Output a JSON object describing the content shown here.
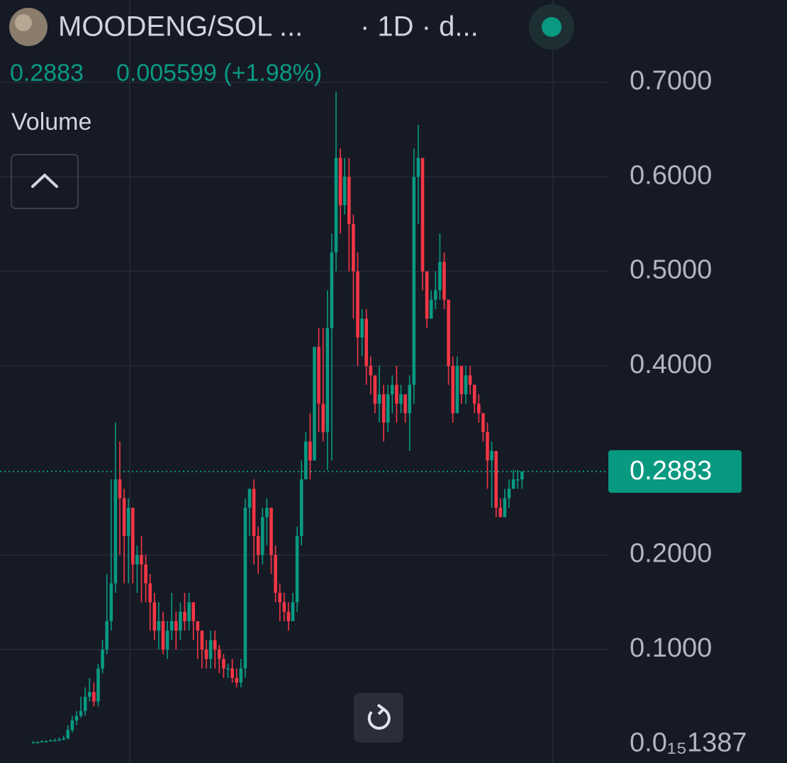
{
  "chart_data": {
    "type": "candlestick",
    "title": "MOODENG/SOL ...",
    "interval": "· 1D · d...",
    "last_price": 0.2883,
    "change_text": "0.005599 (+1.98%)",
    "volume_label": "Volume",
    "up_color": "#089981",
    "down_color": "#f23645",
    "ylim": [
      -0.02,
      0.787
    ],
    "yticks": [
      {
        "value": 1.387e-16,
        "label": "0.0₁₅1387"
      },
      {
        "value": 0.1,
        "label": "0.1000"
      },
      {
        "value": 0.2,
        "label": "0.2000"
      },
      {
        "value": 0.4,
        "label": "0.4000"
      },
      {
        "value": 0.5,
        "label": "0.5000"
      },
      {
        "value": 0.6,
        "label": "0.6000"
      },
      {
        "value": 0.7,
        "label": "0.7000"
      }
    ],
    "grid": true,
    "open": [
      0.002,
      0.002,
      0.002,
      0.003,
      0.003,
      0.004,
      0.004,
      0.005,
      0.006,
      0.015,
      0.025,
      0.03,
      0.035,
      0.05,
      0.055,
      0.045,
      0.08,
      0.1,
      0.13,
      0.17,
      0.28,
      0.26,
      0.22,
      0.25,
      0.19,
      0.2,
      0.19,
      0.17,
      0.15,
      0.12,
      0.13,
      0.1,
      0.12,
      0.13,
      0.12,
      0.14,
      0.13,
      0.15,
      0.13,
      0.12,
      0.1,
      0.09,
      0.11,
      0.1,
      0.09,
      0.08,
      0.08,
      0.07,
      0.065,
      0.08,
      0.25,
      0.27,
      0.22,
      0.2,
      0.24,
      0.25,
      0.2,
      0.16,
      0.15,
      0.14,
      0.13,
      0.15,
      0.22,
      0.28,
      0.32,
      0.3,
      0.42,
      0.36,
      0.33,
      0.44,
      0.52,
      0.62,
      0.57,
      0.6,
      0.55,
      0.5,
      0.43,
      0.45,
      0.4,
      0.39,
      0.36,
      0.37,
      0.34,
      0.37,
      0.38,
      0.36,
      0.37,
      0.35,
      0.38,
      0.6,
      0.62,
      0.5,
      0.45,
      0.47,
      0.48,
      0.51,
      0.47,
      0.4,
      0.35,
      0.4,
      0.37,
      0.39,
      0.38,
      0.36,
      0.35,
      0.33,
      0.3,
      0.31,
      0.25,
      0.24,
      0.26,
      0.27,
      0.28,
      0.28
    ],
    "high": [
      0.003,
      0.003,
      0.004,
      0.004,
      0.005,
      0.006,
      0.007,
      0.009,
      0.02,
      0.03,
      0.035,
      0.05,
      0.06,
      0.07,
      0.065,
      0.085,
      0.11,
      0.18,
      0.28,
      0.34,
      0.32,
      0.27,
      0.26,
      0.25,
      0.21,
      0.22,
      0.2,
      0.18,
      0.16,
      0.15,
      0.14,
      0.13,
      0.16,
      0.14,
      0.15,
      0.16,
      0.16,
      0.15,
      0.13,
      0.12,
      0.11,
      0.12,
      0.12,
      0.105,
      0.095,
      0.085,
      0.09,
      0.08,
      0.09,
      0.26,
      0.27,
      0.28,
      0.23,
      0.25,
      0.26,
      0.25,
      0.21,
      0.17,
      0.16,
      0.15,
      0.16,
      0.23,
      0.3,
      0.33,
      0.35,
      0.42,
      0.44,
      0.44,
      0.48,
      0.54,
      0.69,
      0.63,
      0.62,
      0.62,
      0.56,
      0.52,
      0.46,
      0.46,
      0.41,
      0.39,
      0.4,
      0.38,
      0.38,
      0.39,
      0.4,
      0.38,
      0.37,
      0.39,
      0.63,
      0.655,
      0.62,
      0.5,
      0.48,
      0.5,
      0.54,
      0.52,
      0.47,
      0.41,
      0.41,
      0.4,
      0.4,
      0.4,
      0.38,
      0.37,
      0.35,
      0.34,
      0.32,
      0.31,
      0.26,
      0.27,
      0.28,
      0.29,
      0.29,
      0.2883
    ],
    "low": [
      0.001,
      0.001,
      0.002,
      0.002,
      0.003,
      0.003,
      0.003,
      0.004,
      0.005,
      0.012,
      0.02,
      0.028,
      0.03,
      0.045,
      0.04,
      0.04,
      0.075,
      0.095,
      0.12,
      0.16,
      0.2,
      0.17,
      0.17,
      0.17,
      0.16,
      0.15,
      0.15,
      0.12,
      0.11,
      0.1,
      0.095,
      0.09,
      0.11,
      0.1,
      0.11,
      0.12,
      0.12,
      0.11,
      0.09,
      0.08,
      0.08,
      0.08,
      0.08,
      0.075,
      0.07,
      0.07,
      0.065,
      0.06,
      0.06,
      0.07,
      0.22,
      0.19,
      0.18,
      0.19,
      0.21,
      0.18,
      0.15,
      0.13,
      0.13,
      0.12,
      0.13,
      0.14,
      0.21,
      0.28,
      0.28,
      0.3,
      0.33,
      0.32,
      0.29,
      0.3,
      0.5,
      0.54,
      0.56,
      0.5,
      0.45,
      0.4,
      0.41,
      0.38,
      0.37,
      0.35,
      0.34,
      0.32,
      0.33,
      0.35,
      0.34,
      0.35,
      0.34,
      0.31,
      0.36,
      0.55,
      0.48,
      0.44,
      0.45,
      0.46,
      0.47,
      0.46,
      0.38,
      0.34,
      0.35,
      0.36,
      0.36,
      0.37,
      0.35,
      0.34,
      0.32,
      0.27,
      0.25,
      0.24,
      0.24,
      0.24,
      0.25,
      0.27,
      0.27,
      0.27
    ],
    "close": [
      0.002,
      0.002,
      0.003,
      0.003,
      0.004,
      0.004,
      0.005,
      0.006,
      0.015,
      0.025,
      0.03,
      0.035,
      0.05,
      0.055,
      0.045,
      0.08,
      0.1,
      0.13,
      0.17,
      0.28,
      0.26,
      0.22,
      0.25,
      0.19,
      0.2,
      0.19,
      0.17,
      0.15,
      0.12,
      0.13,
      0.1,
      0.12,
      0.13,
      0.12,
      0.14,
      0.13,
      0.15,
      0.13,
      0.12,
      0.1,
      0.09,
      0.11,
      0.1,
      0.09,
      0.08,
      0.08,
      0.07,
      0.065,
      0.08,
      0.25,
      0.27,
      0.22,
      0.2,
      0.24,
      0.25,
      0.2,
      0.16,
      0.15,
      0.14,
      0.13,
      0.15,
      0.22,
      0.28,
      0.32,
      0.3,
      0.42,
      0.36,
      0.33,
      0.44,
      0.52,
      0.62,
      0.57,
      0.6,
      0.55,
      0.5,
      0.43,
      0.45,
      0.4,
      0.39,
      0.36,
      0.37,
      0.34,
      0.37,
      0.38,
      0.36,
      0.37,
      0.35,
      0.38,
      0.6,
      0.62,
      0.5,
      0.45,
      0.47,
      0.48,
      0.51,
      0.47,
      0.4,
      0.35,
      0.4,
      0.37,
      0.39,
      0.38,
      0.36,
      0.35,
      0.33,
      0.3,
      0.31,
      0.25,
      0.24,
      0.26,
      0.27,
      0.28,
      0.28,
      0.2883
    ]
  }
}
